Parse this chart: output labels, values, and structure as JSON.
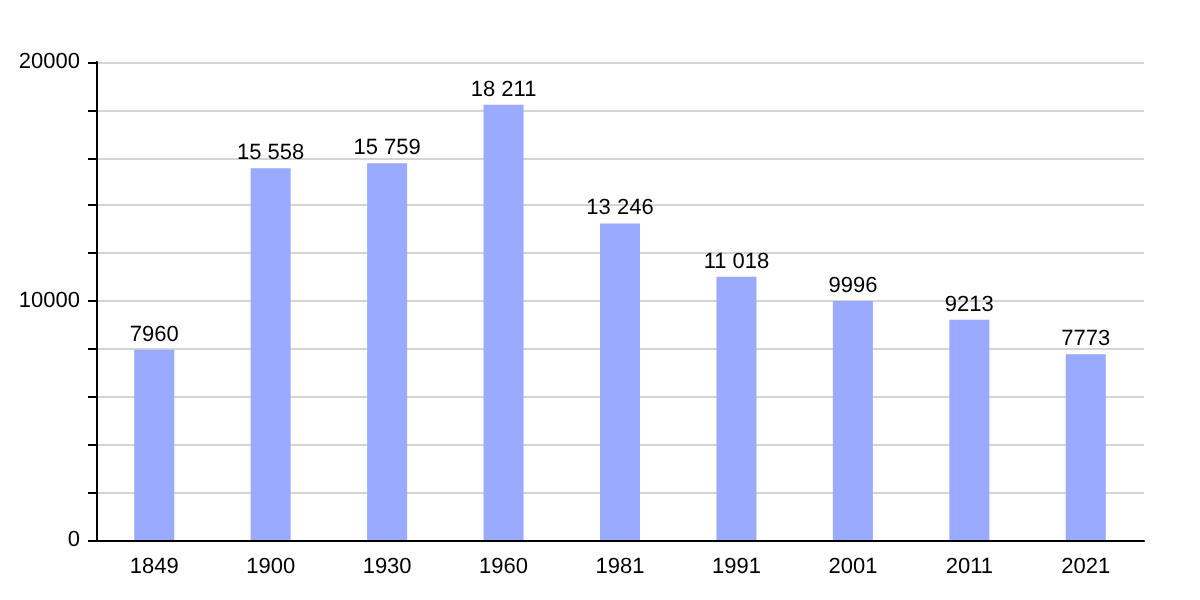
{
  "chart_data": {
    "type": "bar",
    "categories": [
      "1849",
      "1900",
      "1930",
      "1960",
      "1981",
      "1991",
      "2001",
      "2011",
      "2021"
    ],
    "values": [
      7960,
      15558,
      15759,
      18211,
      13246,
      11018,
      9996,
      9213,
      7773
    ],
    "value_labels": [
      "7960",
      "15 558",
      "15 759",
      "18 211",
      "13 246",
      "11 018",
      "9996",
      "9213",
      "7773"
    ],
    "color": "#99aaff",
    "ylim": [
      0,
      20000
    ],
    "yticks": [
      0,
      {
        "value": 2000,
        "label": null
      },
      {
        "value": 4000,
        "label": null
      },
      {
        "value": 6000,
        "label": null
      },
      {
        "value": 8000,
        "label": null
      },
      10000,
      {
        "value": 12000,
        "label": null
      },
      {
        "value": 14000,
        "label": null
      },
      {
        "value": 16000,
        "label": null
      },
      {
        "value": 18000,
        "label": null
      },
      20000
    ],
    "grid": "y"
  }
}
